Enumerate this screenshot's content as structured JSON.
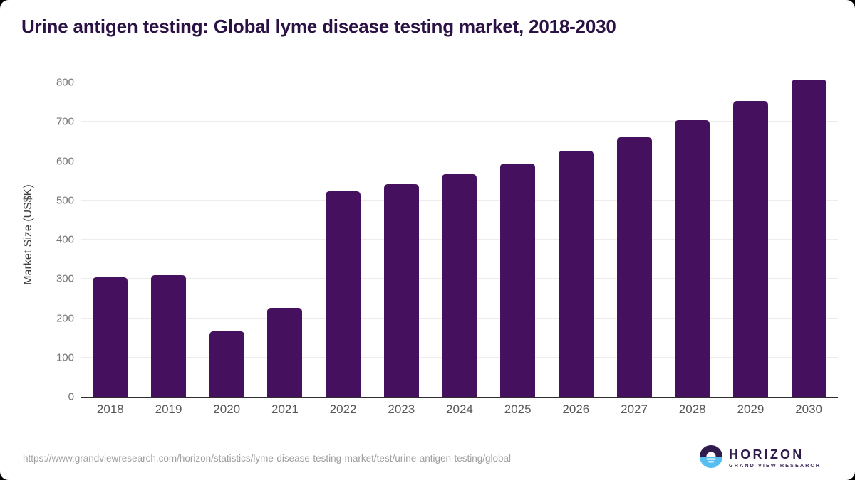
{
  "title": "Urine antigen testing: Global lyme disease testing market, 2018-2030",
  "chart_data": {
    "type": "bar",
    "title": "Urine antigen testing: Global lyme disease testing market, 2018-2030",
    "categories": [
      "2018",
      "2019",
      "2020",
      "2021",
      "2022",
      "2023",
      "2024",
      "2025",
      "2026",
      "2027",
      "2028",
      "2029",
      "2030"
    ],
    "values": [
      305,
      310,
      166,
      227,
      523,
      542,
      566,
      594,
      626,
      661,
      704,
      753,
      808
    ],
    "xlabel": "",
    "ylabel": "Market Size (US$K)",
    "yticks": [
      0,
      100,
      200,
      300,
      400,
      500,
      600,
      700,
      800
    ],
    "ylim": [
      0,
      840
    ],
    "grid": true,
    "legend": false,
    "bar_color": "#45105d"
  },
  "footer": {
    "source_url": "https://www.grandviewresearch.com/horizon/statistics/lyme-disease-testing-market/test/urine-antigen-testing/global",
    "logo": {
      "name": "HORIZON",
      "subtitle": "GRAND VIEW RESEARCH"
    }
  },
  "colors": {
    "bar": "#45105d",
    "title_text": "#2b1144",
    "axis_line": "#2e2e2e",
    "gridline": "#ececec",
    "tick_text": "#76767a",
    "x_label_text": "#57585b",
    "url_text": "#9e9ea0",
    "logo_purple": "#2f1b4c",
    "logo_blue": "#56bff0"
  },
  "icons": {
    "logo_icon": "sunset-horizon-circle"
  }
}
